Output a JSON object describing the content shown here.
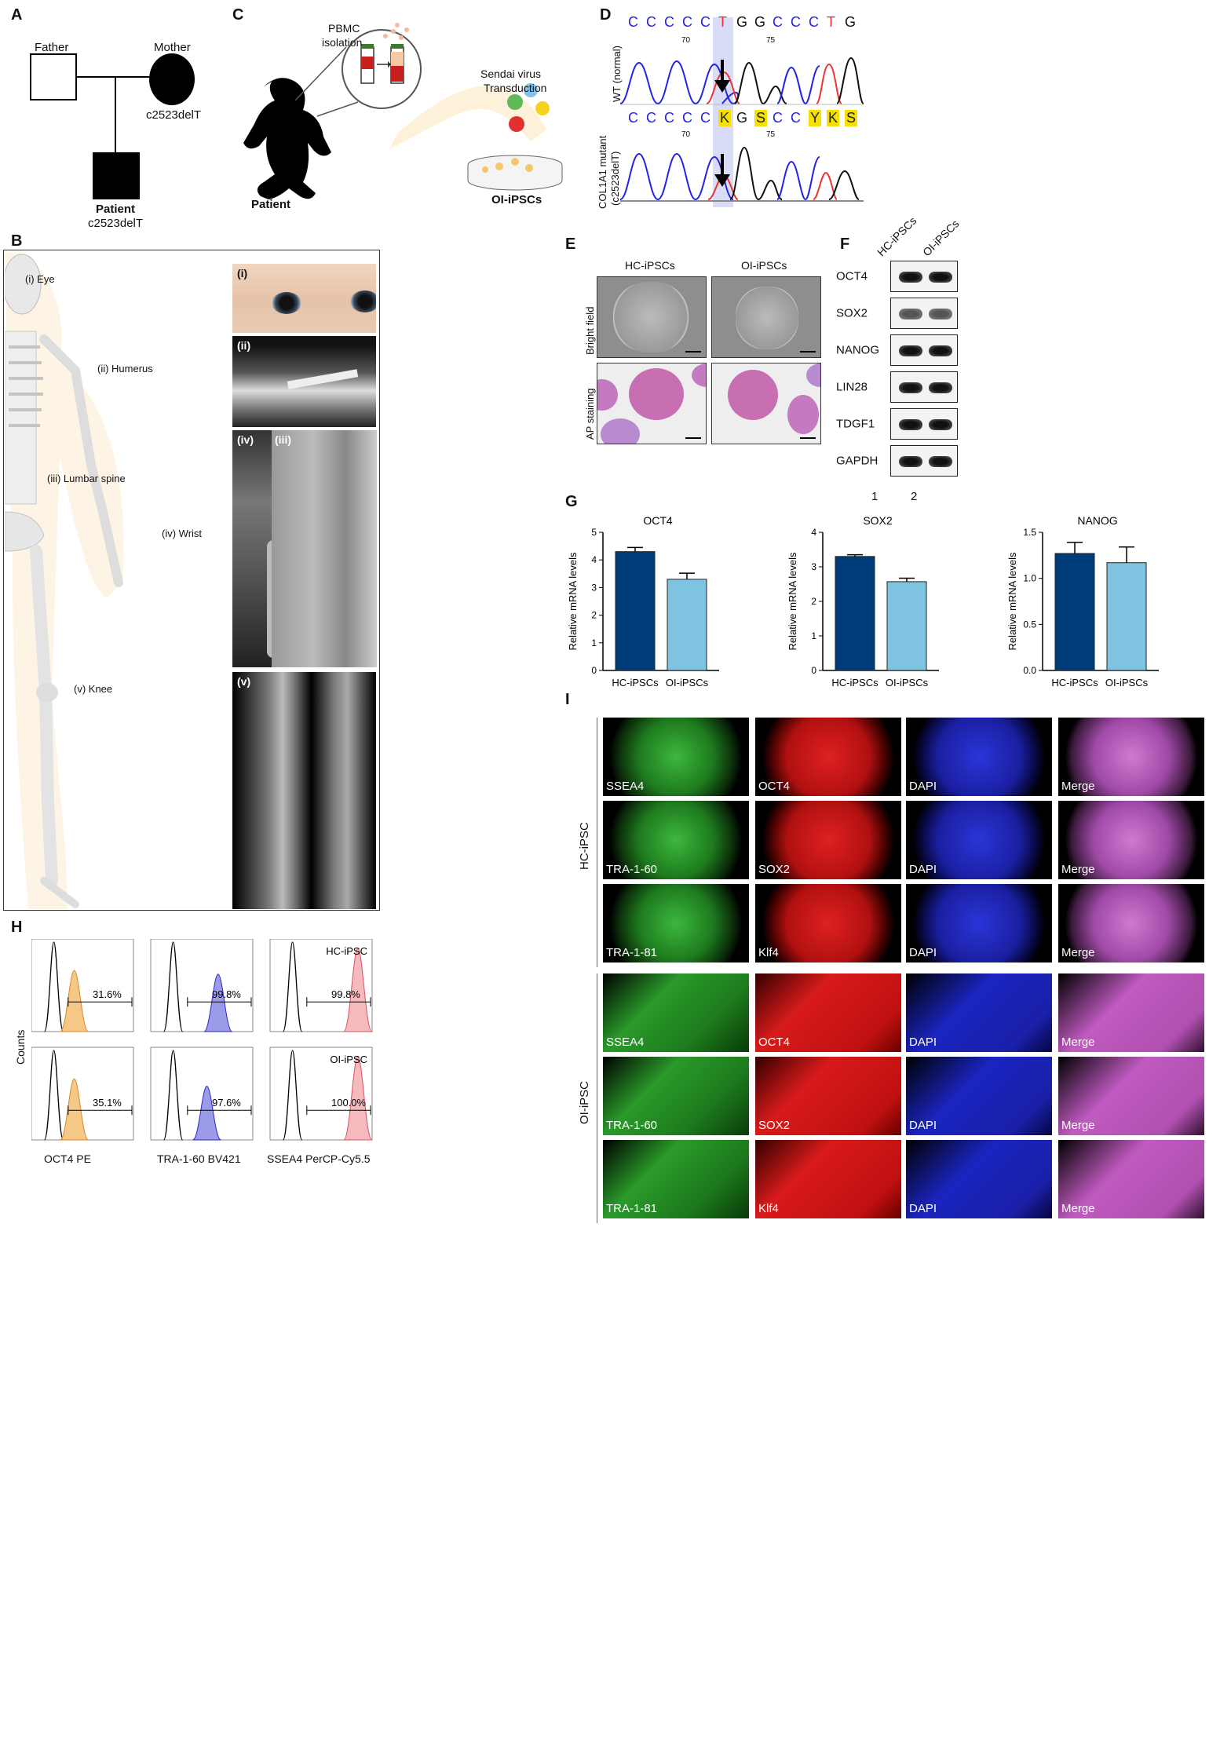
{
  "panels": {
    "A": "A",
    "B": "B",
    "C": "C",
    "D": "D",
    "E": "E",
    "F": "F",
    "G": "G",
    "H": "H",
    "I": "I"
  },
  "pedigree": {
    "father": "Father",
    "mother": "Mother",
    "mother_mut": "c2523delT",
    "patient": "Patient",
    "patient_mut": "c2523delT"
  },
  "schematic": {
    "pbmc": "PBMC",
    "isolation": "isolation",
    "sendai": "Sendai virus",
    "transduction": "Transduction",
    "patient": "Patient",
    "oi": "OI-iPSCs"
  },
  "sequencing": {
    "wt_label": "WT (normal)",
    "mut_label_1": "COL1A1 mutant",
    "mut_label_2": "(c2523delT)",
    "wt_bases": [
      "C",
      "C",
      "C",
      "C",
      "C",
      "T",
      "G",
      "G",
      "C",
      "C",
      "C",
      "T",
      "G"
    ],
    "mut_bases": [
      "C",
      "C",
      "C",
      "C",
      "C",
      "K",
      "G",
      "S",
      "C",
      "C",
      "Y",
      "K",
      "S"
    ],
    "pos70": "70",
    "pos75": "75"
  },
  "skeleton": {
    "eye": "(i) Eye",
    "humerus": "(ii) Humerus",
    "lumbar": "(iii) Lumbar spine",
    "wrist": "(iv) Wrist",
    "knee": "(v) Knee",
    "x1": "(i)",
    "x2": "(ii)",
    "x3": "(iii)",
    "x4": "(iv)",
    "x5": "(v)"
  },
  "morphology": {
    "col1": "HC-iPSCs",
    "col2": "OI-iPSCs",
    "row1": "Bright field",
    "row2": "AP staining"
  },
  "western": {
    "col1": "HC-iPSCs",
    "col2": "OI-iPSCs",
    "bands": [
      "OCT4",
      "SOX2",
      "NANOG",
      "LIN28",
      "TDGF1",
      "GAPDH"
    ],
    "lane1": "1",
    "lane2": "2"
  },
  "chart_data": [
    {
      "type": "bar",
      "title": "OCT4",
      "ylabel": "Relative mRNA levels",
      "categories": [
        "HC-iPSCs",
        "OI-iPSCs"
      ],
      "values": [
        4.3,
        3.3
      ],
      "errors": [
        0.15,
        0.22
      ],
      "ylim": [
        0,
        5
      ],
      "yticks": [
        "0",
        "1",
        "2",
        "3",
        "4",
        "5"
      ],
      "colors": [
        "#003c7a",
        "#7ec3df"
      ]
    },
    {
      "type": "bar",
      "title": "SOX2",
      "ylabel": "Relative mRNA levels",
      "categories": [
        "HC-iPSCs",
        "OI-iPSCs"
      ],
      "values": [
        3.3,
        2.57
      ],
      "errors": [
        0.05,
        0.1
      ],
      "ylim": [
        0,
        4
      ],
      "yticks": [
        "0",
        "1",
        "2",
        "3",
        "4"
      ],
      "colors": [
        "#003c7a",
        "#7ec3df"
      ]
    },
    {
      "type": "bar",
      "title": "NANOG",
      "ylabel": "Relative mRNA levels",
      "categories": [
        "HC-iPSCs",
        "OI-iPSCs"
      ],
      "values": [
        1.27,
        1.17
      ],
      "errors": [
        0.12,
        0.17
      ],
      "ylim": [
        0,
        1.5
      ],
      "yticks": [
        "0.0",
        "0.5",
        "1.0",
        "1.5"
      ],
      "colors": [
        "#003c7a",
        "#7ec3df"
      ]
    }
  ],
  "flow": {
    "ylabel": "Counts",
    "xlabels": [
      "OCT4 PE",
      "TRA-1-60 BV421",
      "SSEA4 PerCP-Cy5.5"
    ],
    "hc": "HC-iPSC",
    "oi": "OI-iPSC",
    "pct": [
      [
        "31.6%",
        "99.8%",
        "99.8%"
      ],
      [
        "35.1%",
        "97.6%",
        "100.0%"
      ]
    ]
  },
  "immuno": {
    "hc": "HC-iPSC",
    "oi": "OI-iPSC",
    "rows": [
      [
        "SSEA4",
        "OCT4",
        "DAPI",
        "Merge"
      ],
      [
        "TRA-1-60",
        "SOX2",
        "DAPI",
        "Merge"
      ],
      [
        "TRA-1-81",
        "Klf4",
        "DAPI",
        "Merge"
      ]
    ]
  }
}
